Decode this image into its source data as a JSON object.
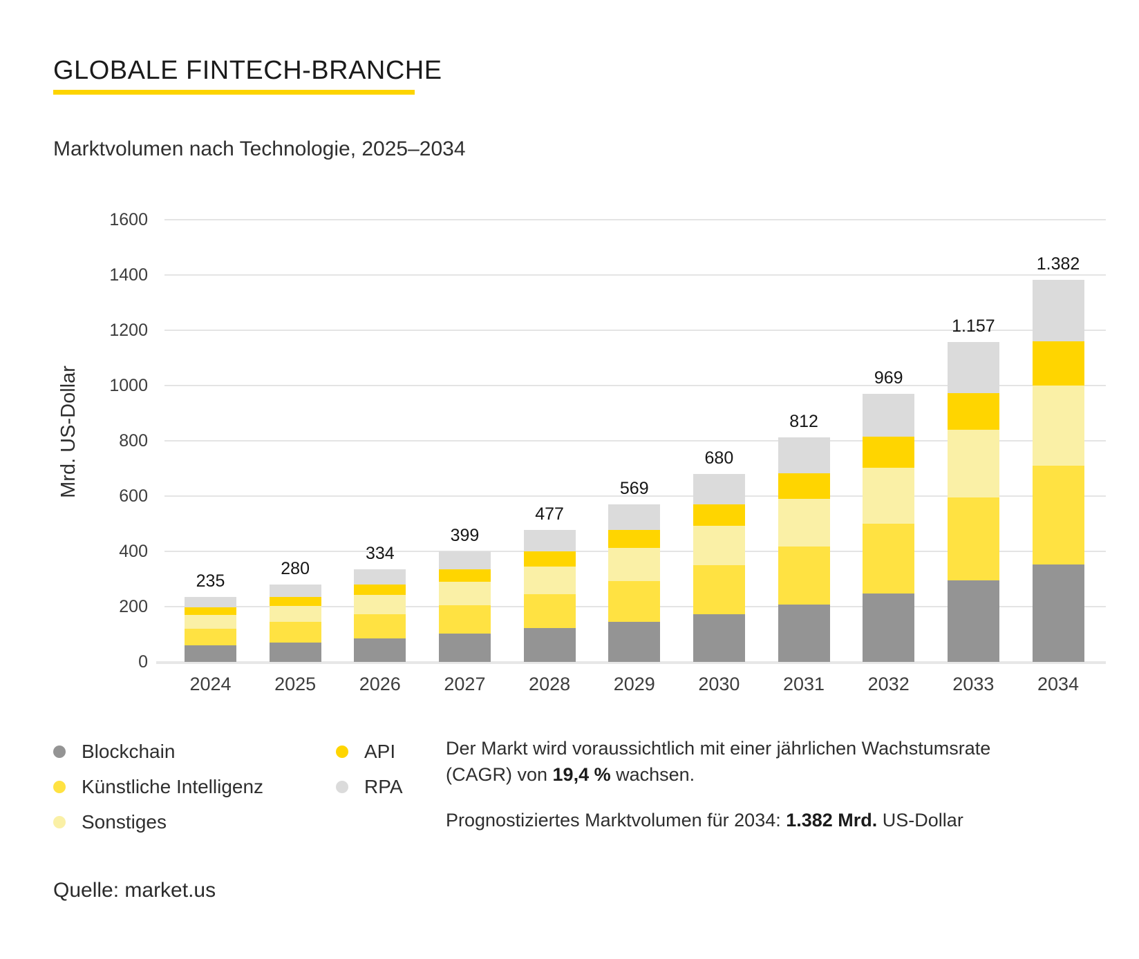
{
  "page": {
    "title": "GLOBALE FINTECH-BRANCHE",
    "subtitle": "Marktvolumen nach Technologie, 2025–2034",
    "source": "Quelle: market.us"
  },
  "accent": {
    "underline_color": "#fdd400"
  },
  "chart_data": {
    "type": "bar",
    "stacked": true,
    "title": "Marktvolumen nach Technologie, 2025–2034",
    "xlabel": "",
    "ylabel": "Mrd. US-Dollar",
    "ylim": [
      0,
      1600
    ],
    "ytick_step": 200,
    "grid": true,
    "legend_position": "bottom-left",
    "categories": [
      "2024",
      "2025",
      "2026",
      "2027",
      "2028",
      "2029",
      "2030",
      "2031",
      "2032",
      "2033",
      "2034"
    ],
    "totals": [
      235,
      280,
      334,
      399,
      477,
      569,
      680,
      812,
      969,
      1157,
      1382
    ],
    "total_labels": [
      "235",
      "280",
      "334",
      "399",
      "477",
      "569",
      "680",
      "812",
      "969",
      "1.157",
      "1.382"
    ],
    "series": [
      {
        "name": "Blockchain",
        "color": "#949494",
        "values": [
          60,
          71,
          85,
          102,
          122,
          145,
          173,
          207,
          247,
          295,
          352
        ]
      },
      {
        "name": "Künstliche Intelligenz",
        "color": "#ffe242",
        "values": [
          61,
          73,
          87,
          104,
          124,
          148,
          177,
          211,
          252,
          301,
          359
        ]
      },
      {
        "name": "Sonstiges",
        "color": "#faf0a6",
        "values": [
          49,
          59,
          70,
          84,
          100,
          119,
          143,
          171,
          204,
          243,
          290
        ]
      },
      {
        "name": "API",
        "color": "#ffd500",
        "values": [
          27,
          32,
          38,
          46,
          55,
          65,
          78,
          93,
          111,
          133,
          159
        ]
      },
      {
        "name": "RPA",
        "color": "#dbdbdb",
        "values": [
          38,
          45,
          54,
          63,
          76,
          92,
          109,
          130,
          155,
          185,
          222
        ]
      }
    ]
  },
  "legend": {
    "columns": [
      [
        {
          "label": "Blockchain",
          "color": "#949494"
        },
        {
          "label": "Künstliche Intelligenz",
          "color": "#ffe242"
        },
        {
          "label": "Sonstiges",
          "color": "#faf0a6"
        }
      ],
      [
        {
          "label": "API",
          "color": "#ffd500"
        },
        {
          "label": "RPA",
          "color": "#dbdbdb"
        }
      ]
    ]
  },
  "notes": {
    "growth_prefix": "Der Markt wird voraussichtlich mit einer jährlichen Wachstumsrate (CAGR) von ",
    "growth_bold": "19,4 %",
    "growth_suffix": " wachsen.",
    "forecast_prefix": "Prognostiziertes Marktvolumen für 2034: ",
    "forecast_bold": "1.382 Mrd.",
    "forecast_suffix": " US-Dollar"
  }
}
